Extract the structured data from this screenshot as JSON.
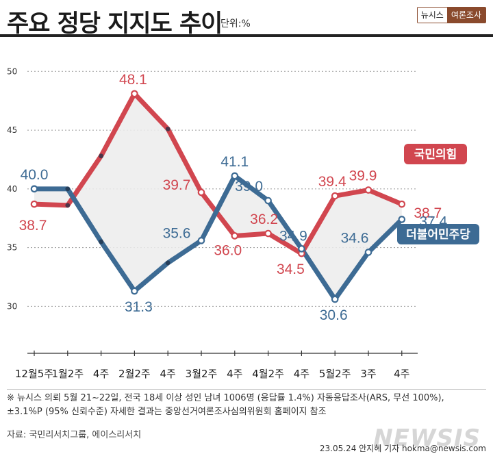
{
  "header": {
    "title": "주요 정당 지지도 추이",
    "unit": "단위:%",
    "badge_left": "뉴시스",
    "badge_right": "여론조사"
  },
  "chart_data": {
    "type": "line",
    "categories": [
      "12월5주",
      "1월2주",
      "4주",
      "2월2주",
      "4주",
      "3월2주",
      "4주",
      "4월2주",
      "4주",
      "5월2주",
      "3주",
      "4주"
    ],
    "ylim": [
      26,
      52
    ],
    "yticks": [
      30,
      35,
      40,
      45,
      50
    ],
    "grid": true,
    "series": [
      {
        "name": "국민의힘",
        "color": "#d1464f",
        "values": [
          38.7,
          38.6,
          42.8,
          48.1,
          45.1,
          39.7,
          36.0,
          36.2,
          34.5,
          39.4,
          39.9,
          38.7
        ],
        "labeled": [
          true,
          false,
          false,
          true,
          false,
          true,
          true,
          true,
          true,
          true,
          true,
          true
        ],
        "label_texts": [
          "38.7",
          "",
          "",
          "48.1",
          "",
          "39.7",
          "36.0",
          "36.2",
          "34.5",
          "39.4",
          "39.9",
          "38.7"
        ]
      },
      {
        "name": "더불어민주당",
        "color": "#3d6b94",
        "values": [
          40.0,
          40.0,
          35.5,
          31.3,
          33.7,
          35.6,
          41.1,
          39.0,
          34.9,
          30.6,
          34.6,
          37.4
        ],
        "labeled": [
          true,
          false,
          false,
          true,
          false,
          true,
          true,
          true,
          true,
          true,
          true,
          true
        ],
        "label_texts": [
          "40.0",
          "",
          "",
          "31.3",
          "",
          "35.6",
          "41.1",
          "39.0",
          "34.9",
          "30.6",
          "34.6",
          "37.4"
        ]
      }
    ]
  },
  "notes": {
    "line1": "※ 뉴시스 의뢰 5월 21~22일, 전국 18세 이상 성인 남녀 1006명 (응답률 1.4%) 자동응답조사(ARS, 무선 100%),",
    "line2": "±3.1%P (95% 신뢰수준) 자세한 결과는 중앙선거여론조사심의위원회 홈페이지 참조"
  },
  "source": "자료: 국민리서치그룹, 에이스리서치",
  "watermark": "NEWSIS",
  "byline": "23.05.24 안지혜 기자 hokma@newsis.com"
}
